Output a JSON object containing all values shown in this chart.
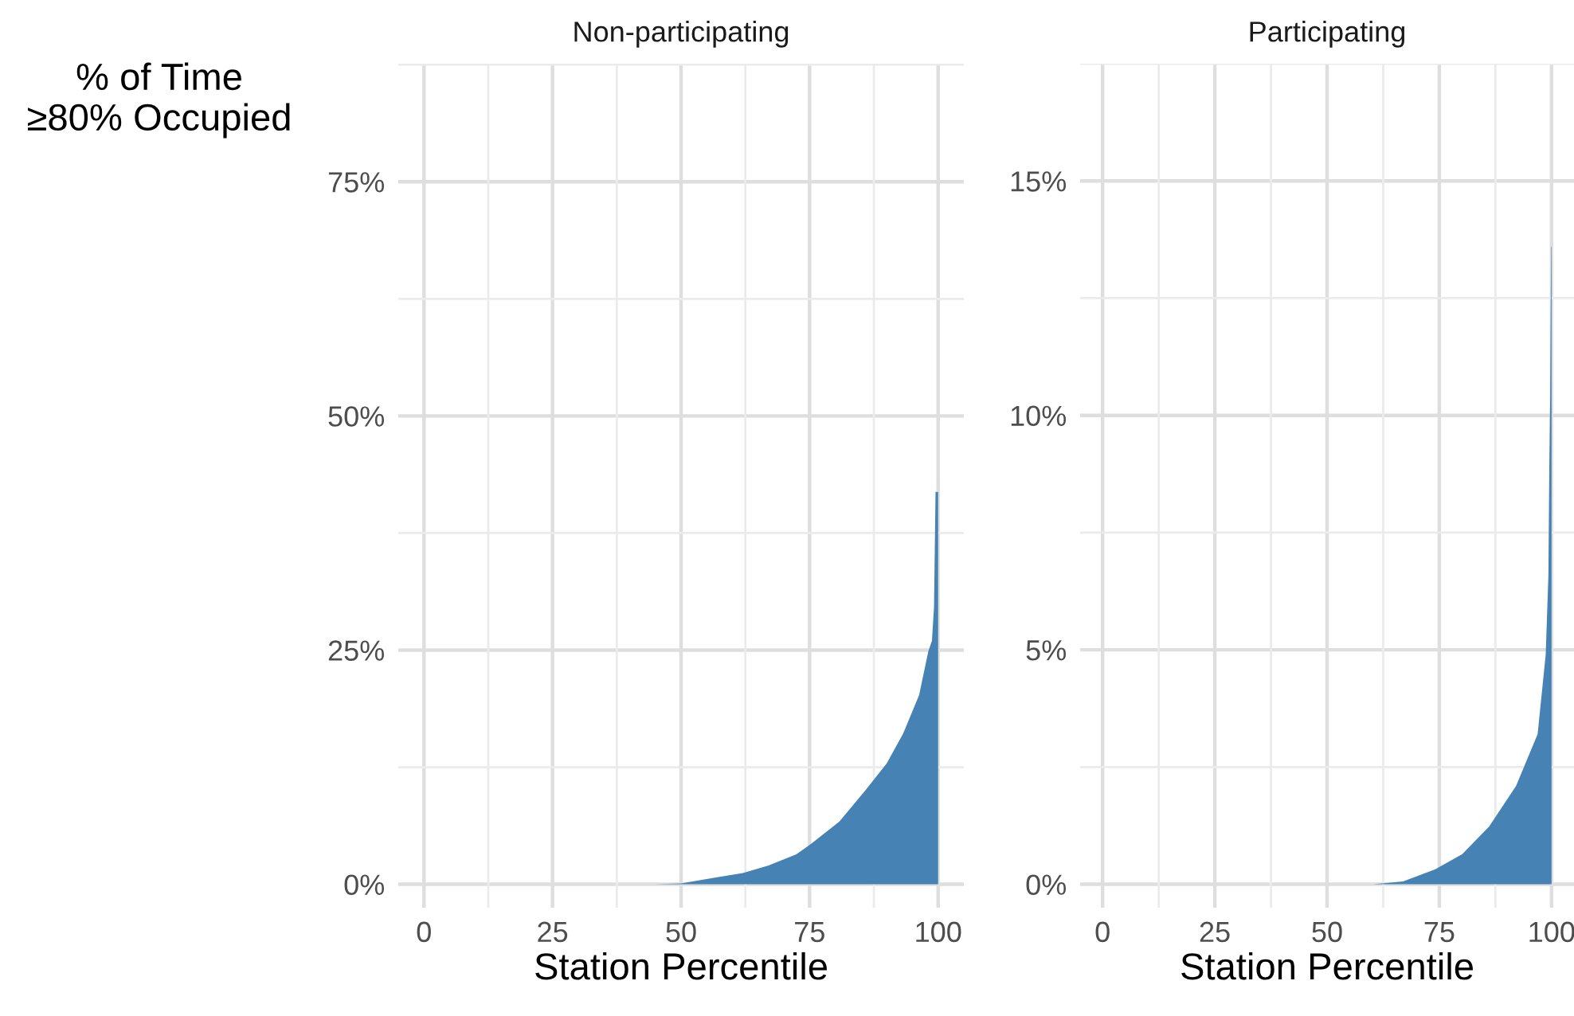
{
  "chart_data": [
    {
      "type": "area",
      "title": "Non-participating",
      "ylabel": "% of Time\n≥80% Occupied",
      "xlabel": "Station Percentile",
      "x": [
        45,
        50,
        57,
        62,
        67,
        72.4,
        75.5,
        80.8,
        85.8,
        90,
        93.2,
        96.3,
        98.1,
        98.8,
        99.2,
        99.5,
        100
      ],
      "values": [
        0,
        0.1,
        0.75,
        1.2,
        2.0,
        3.2,
        4.4,
        6.7,
        10,
        12.9,
        16.1,
        20.2,
        24.9,
        26,
        29.6,
        41.9,
        41.9
      ],
      "color": "#4682b4",
      "xlim": [
        -5,
        105
      ],
      "ylim": [
        -2.5,
        87.6
      ],
      "xticks": [
        0,
        25,
        50,
        75,
        100
      ],
      "yticks": [
        {
          "value": 0,
          "label": "0%"
        },
        {
          "value": 25,
          "label": "25%"
        },
        {
          "value": 50,
          "label": "50%"
        },
        {
          "value": 75,
          "label": "75%"
        }
      ],
      "grid": true
    },
    {
      "type": "area",
      "title": "Participating",
      "xlabel": "Station Percentile",
      "x": [
        60.3,
        66.9,
        74.1,
        80.1,
        86.1,
        92.1,
        96.9,
        98.7,
        99.3,
        99.5,
        99.7,
        99.9,
        100
      ],
      "values": [
        0,
        0.06,
        0.32,
        0.64,
        1.23,
        2.1,
        3.2,
        4.9,
        6.6,
        8.9,
        10.4,
        13.6,
        13.6
      ],
      "color": "#4682b4",
      "xlim": [
        -5,
        105
      ],
      "ylim": [
        -0.5,
        17.5
      ],
      "xticks": [
        0,
        25,
        50,
        75,
        100
      ],
      "yticks": [
        {
          "value": 0,
          "label": "0%"
        },
        {
          "value": 5,
          "label": "5%"
        },
        {
          "value": 10,
          "label": "10%"
        },
        {
          "value": 15,
          "label": "15%"
        }
      ],
      "grid": true
    }
  ]
}
